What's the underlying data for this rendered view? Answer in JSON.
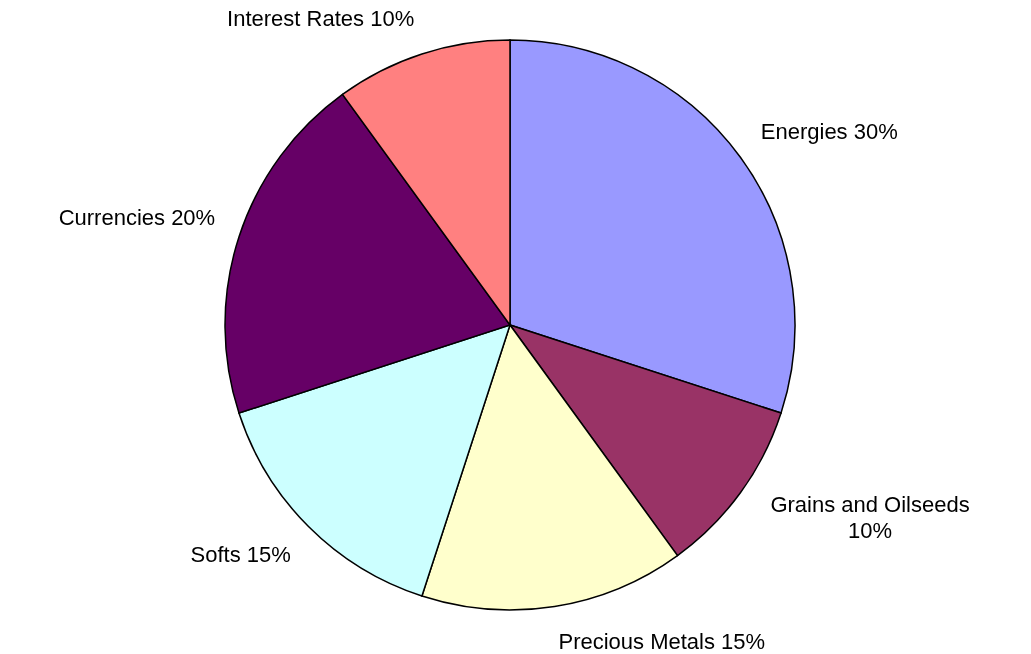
{
  "chart_data": {
    "type": "pie",
    "categories": [
      "Energies",
      "Grains and Oilseeds",
      "Precious Metals",
      "Softs",
      "Currencies",
      "Interest Rates"
    ],
    "values": [
      30,
      10,
      15,
      15,
      20,
      10
    ],
    "value_labels": [
      "30%",
      "10%",
      "15%",
      "15%",
      "20%",
      "10%"
    ],
    "colors": [
      "#9999ff",
      "#993366",
      "#ffffcc",
      "#ccffff",
      "#660066",
      "#ff8080"
    ]
  }
}
